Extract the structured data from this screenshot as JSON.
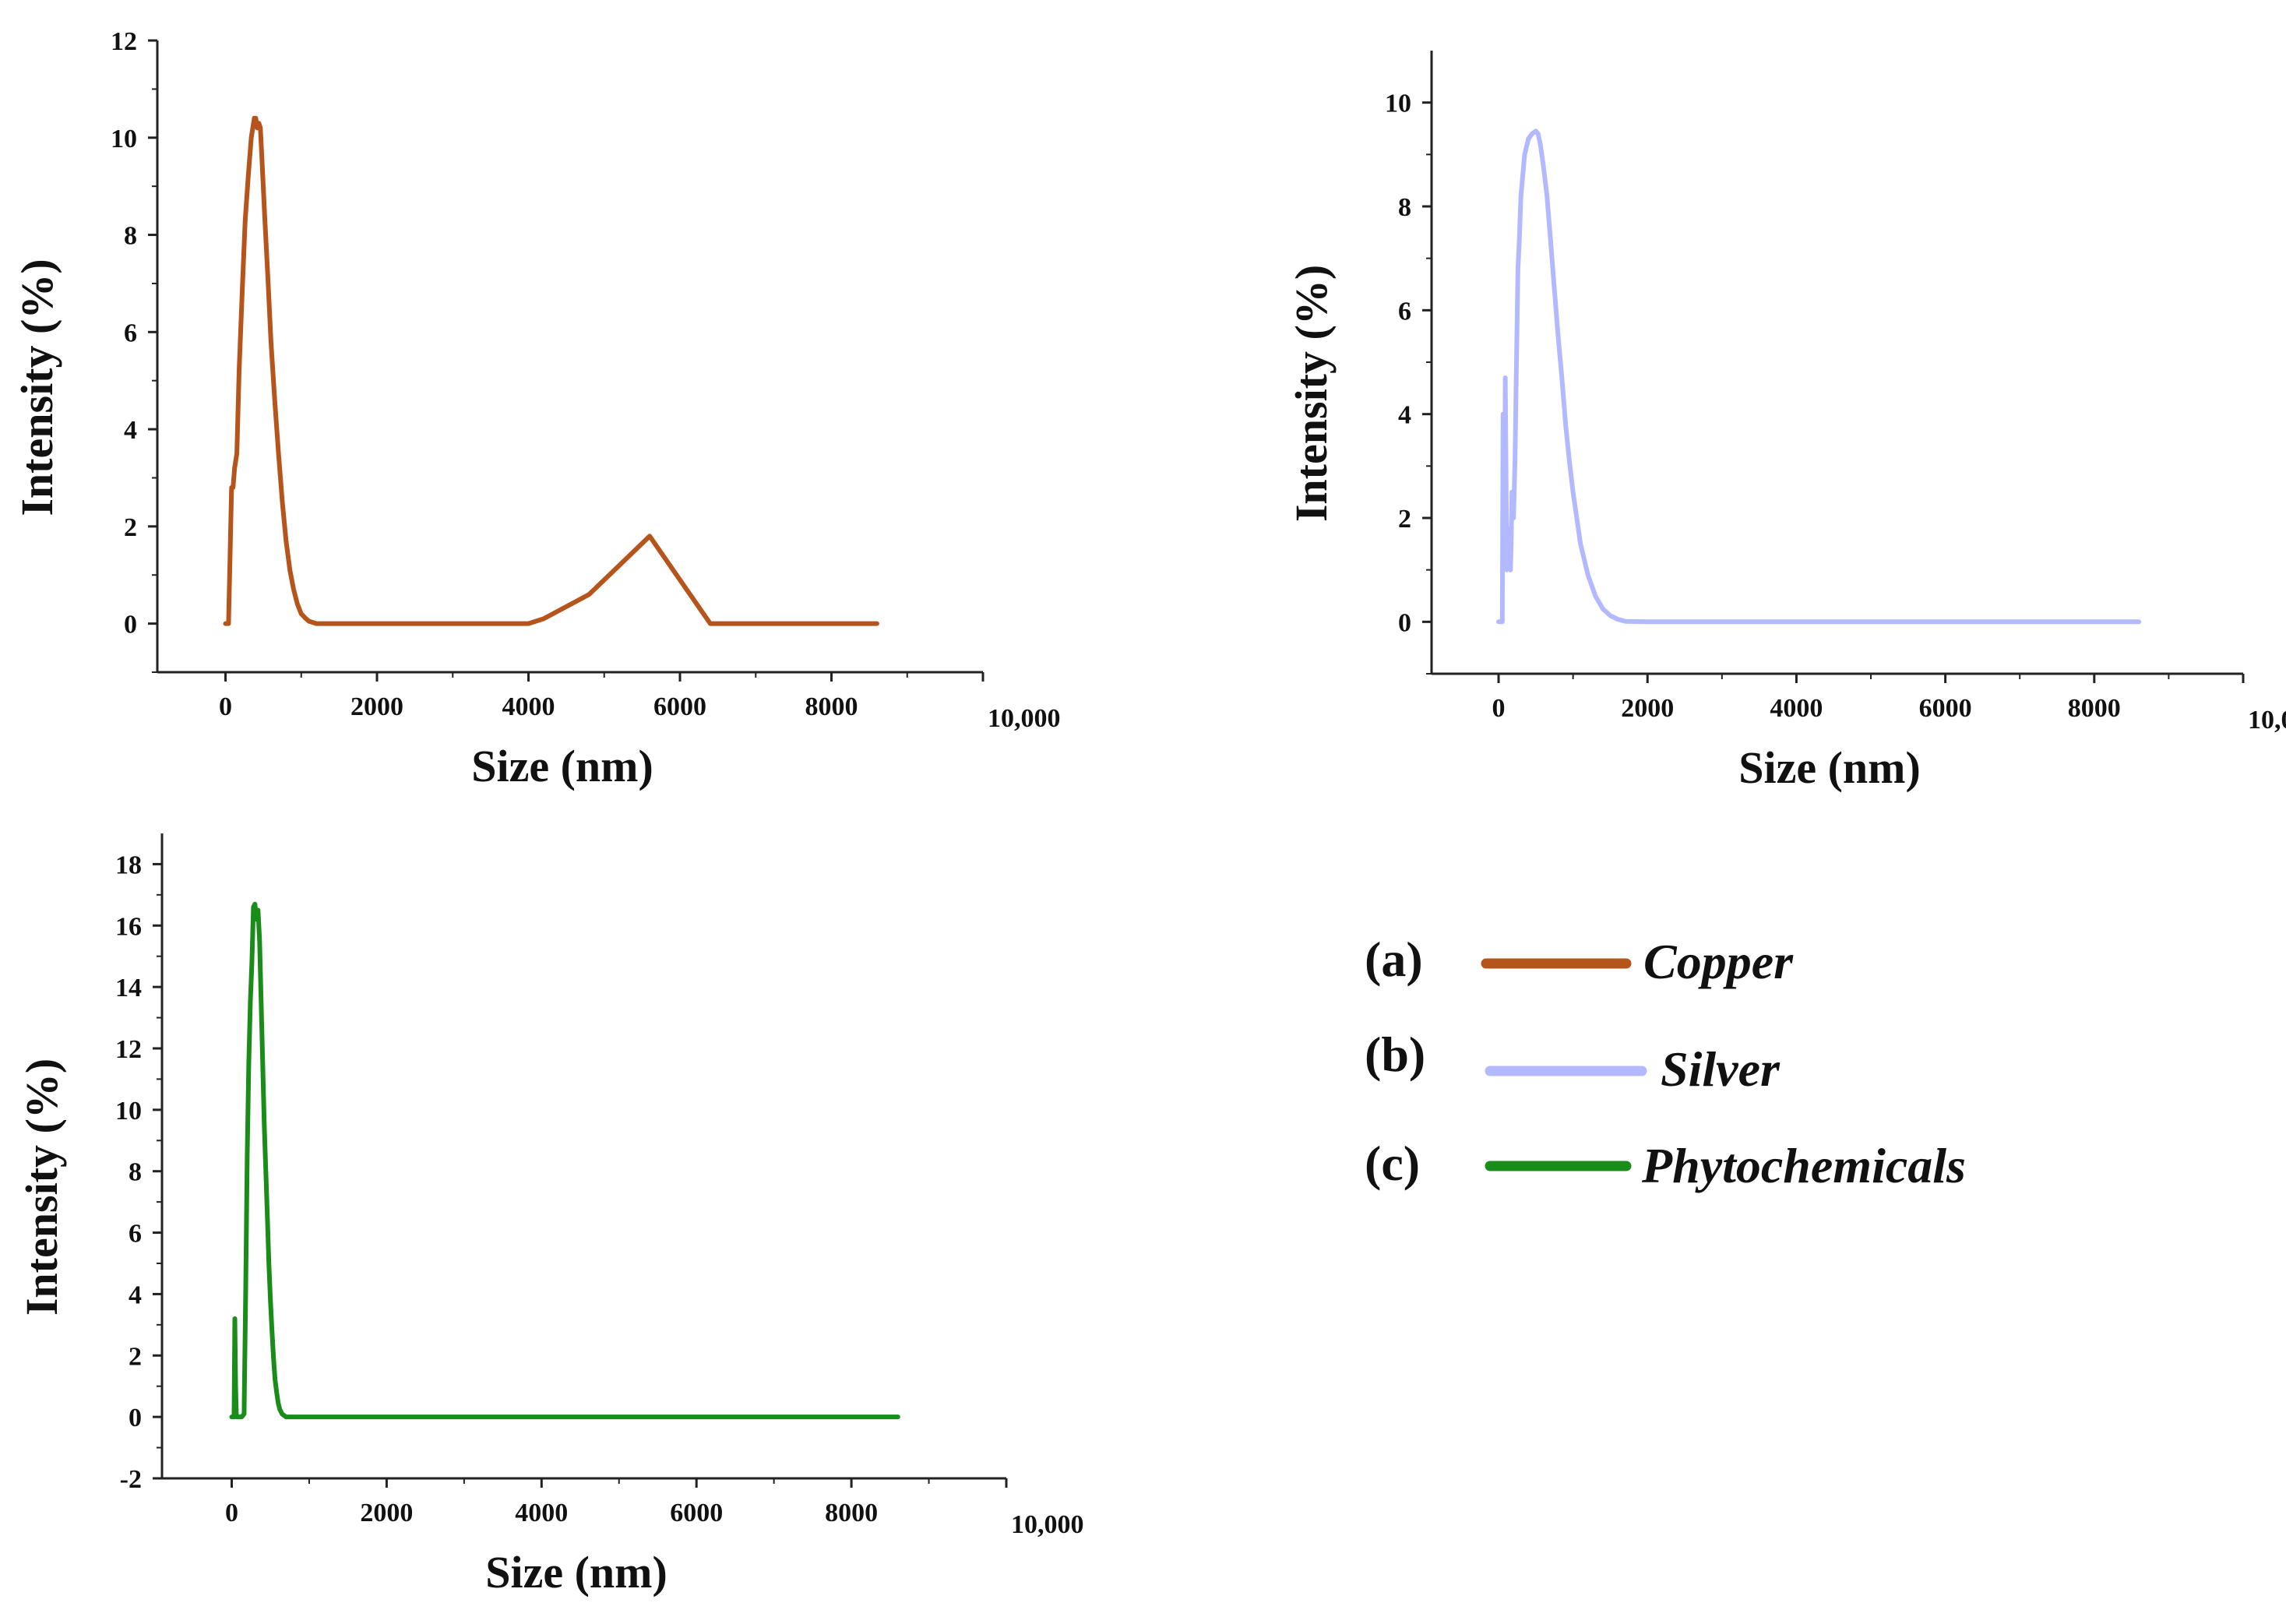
{
  "chart_data": [
    {
      "type": "line",
      "panel": "a",
      "series": [
        {
          "name": "Copper",
          "color": "#b5541b",
          "x": [
            0,
            40,
            60,
            80,
            100,
            120,
            150,
            180,
            220,
            260,
            300,
            340,
            380,
            400,
            420,
            440,
            460,
            480,
            520,
            560,
            600,
            650,
            700,
            750,
            800,
            850,
            900,
            950,
            1000,
            1050,
            1100,
            1200,
            1500,
            2000,
            3000,
            4000,
            4200,
            4800,
            5200,
            5600,
            6000,
            6400,
            6500,
            7000,
            8000,
            8600
          ],
          "y": [
            0,
            0,
            1.4,
            2.8,
            2.8,
            3.2,
            3.5,
            5.2,
            6.8,
            8.3,
            9.2,
            10.0,
            10.4,
            10.4,
            10.2,
            10.3,
            10.2,
            9.6,
            8.3,
            7.1,
            5.8,
            4.6,
            3.5,
            2.5,
            1.7,
            1.1,
            0.7,
            0.4,
            0.2,
            0.12,
            0.05,
            0,
            0,
            0,
            0,
            0,
            0.1,
            0.6,
            1.2,
            1.8,
            0.9,
            0,
            0,
            0,
            0,
            0
          ]
        }
      ],
      "xlabel": "Size (nm)",
      "ylabel": "Intensity (%)",
      "xlim": [
        -900,
        10000
      ],
      "ylim": [
        -1,
        12
      ],
      "xticks": [
        0,
        2000,
        4000,
        6000,
        8000,
        10000
      ],
      "xtick_labels": [
        "0",
        "2000",
        "4000",
        "6000",
        "8000",
        "10,000"
      ],
      "yticks": [
        0,
        2,
        4,
        6,
        8,
        10,
        12
      ],
      "ytick_labels": [
        "0",
        "2",
        "4",
        "6",
        "8",
        "10",
        "12"
      ]
    },
    {
      "type": "line",
      "panel": "b",
      "series": [
        {
          "name": "Silver",
          "color": "#b3b9ff",
          "x": [
            0,
            50,
            60,
            80,
            90,
            110,
            120,
            140,
            160,
            170,
            180,
            200,
            220,
            240,
            260,
            280,
            300,
            350,
            400,
            450,
            500,
            530,
            560,
            600,
            650,
            700,
            750,
            800,
            850,
            900,
            950,
            1000,
            1100,
            1200,
            1300,
            1400,
            1500,
            1600,
            1700,
            2000,
            3000,
            4000,
            5000,
            6000,
            7000,
            8000,
            8600
          ],
          "y": [
            0,
            0,
            4.0,
            1.5,
            4.7,
            1.0,
            1.8,
            1.5,
            1.0,
            1.6,
            2.5,
            2.0,
            3.1,
            5.0,
            6.8,
            7.4,
            8.2,
            9.0,
            9.3,
            9.4,
            9.45,
            9.4,
            9.2,
            8.8,
            8.2,
            7.3,
            6.4,
            5.5,
            4.7,
            3.8,
            3.1,
            2.5,
            1.5,
            0.9,
            0.5,
            0.25,
            0.12,
            0.05,
            0.01,
            0,
            0,
            0,
            0,
            0,
            0,
            0,
            0
          ]
        }
      ],
      "xlabel": "Size (nm)",
      "ylabel": "Intensity (%)",
      "xlim": [
        -900,
        10000
      ],
      "ylim": [
        -1,
        11
      ],
      "xticks": [
        0,
        2000,
        4000,
        6000,
        8000,
        10000
      ],
      "xtick_labels": [
        "0",
        "2000",
        "4000",
        "6000",
        "8000",
        "10,000"
      ],
      "yticks": [
        0,
        2,
        4,
        6,
        8,
        10
      ],
      "ytick_labels": [
        "0",
        "2",
        "4",
        "6",
        "8",
        "10"
      ]
    },
    {
      "type": "line",
      "panel": "c",
      "series": [
        {
          "name": "Phytochemicals",
          "color": "#1a8c1a",
          "x": [
            0,
            30,
            40,
            50,
            60,
            80,
            100,
            130,
            160,
            180,
            200,
            220,
            240,
            260,
            280,
            300,
            320,
            340,
            360,
            380,
            400,
            420,
            440,
            460,
            480,
            500,
            520,
            540,
            560,
            580,
            600,
            620,
            650,
            700,
            1000,
            2000,
            4000,
            6000,
            8000,
            8600
          ],
          "y": [
            0,
            0,
            3.2,
            1.0,
            0,
            0,
            0,
            0,
            0.1,
            4.0,
            8.5,
            11.5,
            13.5,
            14.8,
            16.6,
            16.7,
            16.2,
            16.5,
            15.5,
            13.5,
            11.5,
            9.5,
            8.0,
            6.5,
            5.0,
            3.8,
            2.8,
            1.9,
            1.2,
            0.8,
            0.45,
            0.25,
            0.1,
            0,
            0,
            0,
            0,
            0,
            0,
            0
          ]
        }
      ],
      "xlabel": "Size (nm)",
      "ylabel": "Intensity (%)",
      "xlim": [
        -900,
        10000
      ],
      "ylim": [
        -2,
        19
      ],
      "xticks": [
        0,
        2000,
        4000,
        6000,
        8000,
        10000
      ],
      "xtick_labels": [
        "0",
        "2000",
        "4000",
        "6000",
        "8000",
        "10,000"
      ],
      "yticks": [
        -2,
        0,
        2,
        4,
        6,
        8,
        10,
        12,
        14,
        16,
        18
      ],
      "ytick_labels": [
        "-2",
        "0",
        "2",
        "4",
        "6",
        "8",
        "10",
        "12",
        "14",
        "16",
        "18"
      ]
    }
  ],
  "legend": [
    {
      "tag": "(a)",
      "name": "Copper",
      "color": "#b5541b"
    },
    {
      "tag": "(b)",
      "name": "Silver",
      "color": "#b3b9ff"
    },
    {
      "tag": "(c)",
      "name": "Phytochemicals",
      "color": "#1a8c1a"
    }
  ]
}
